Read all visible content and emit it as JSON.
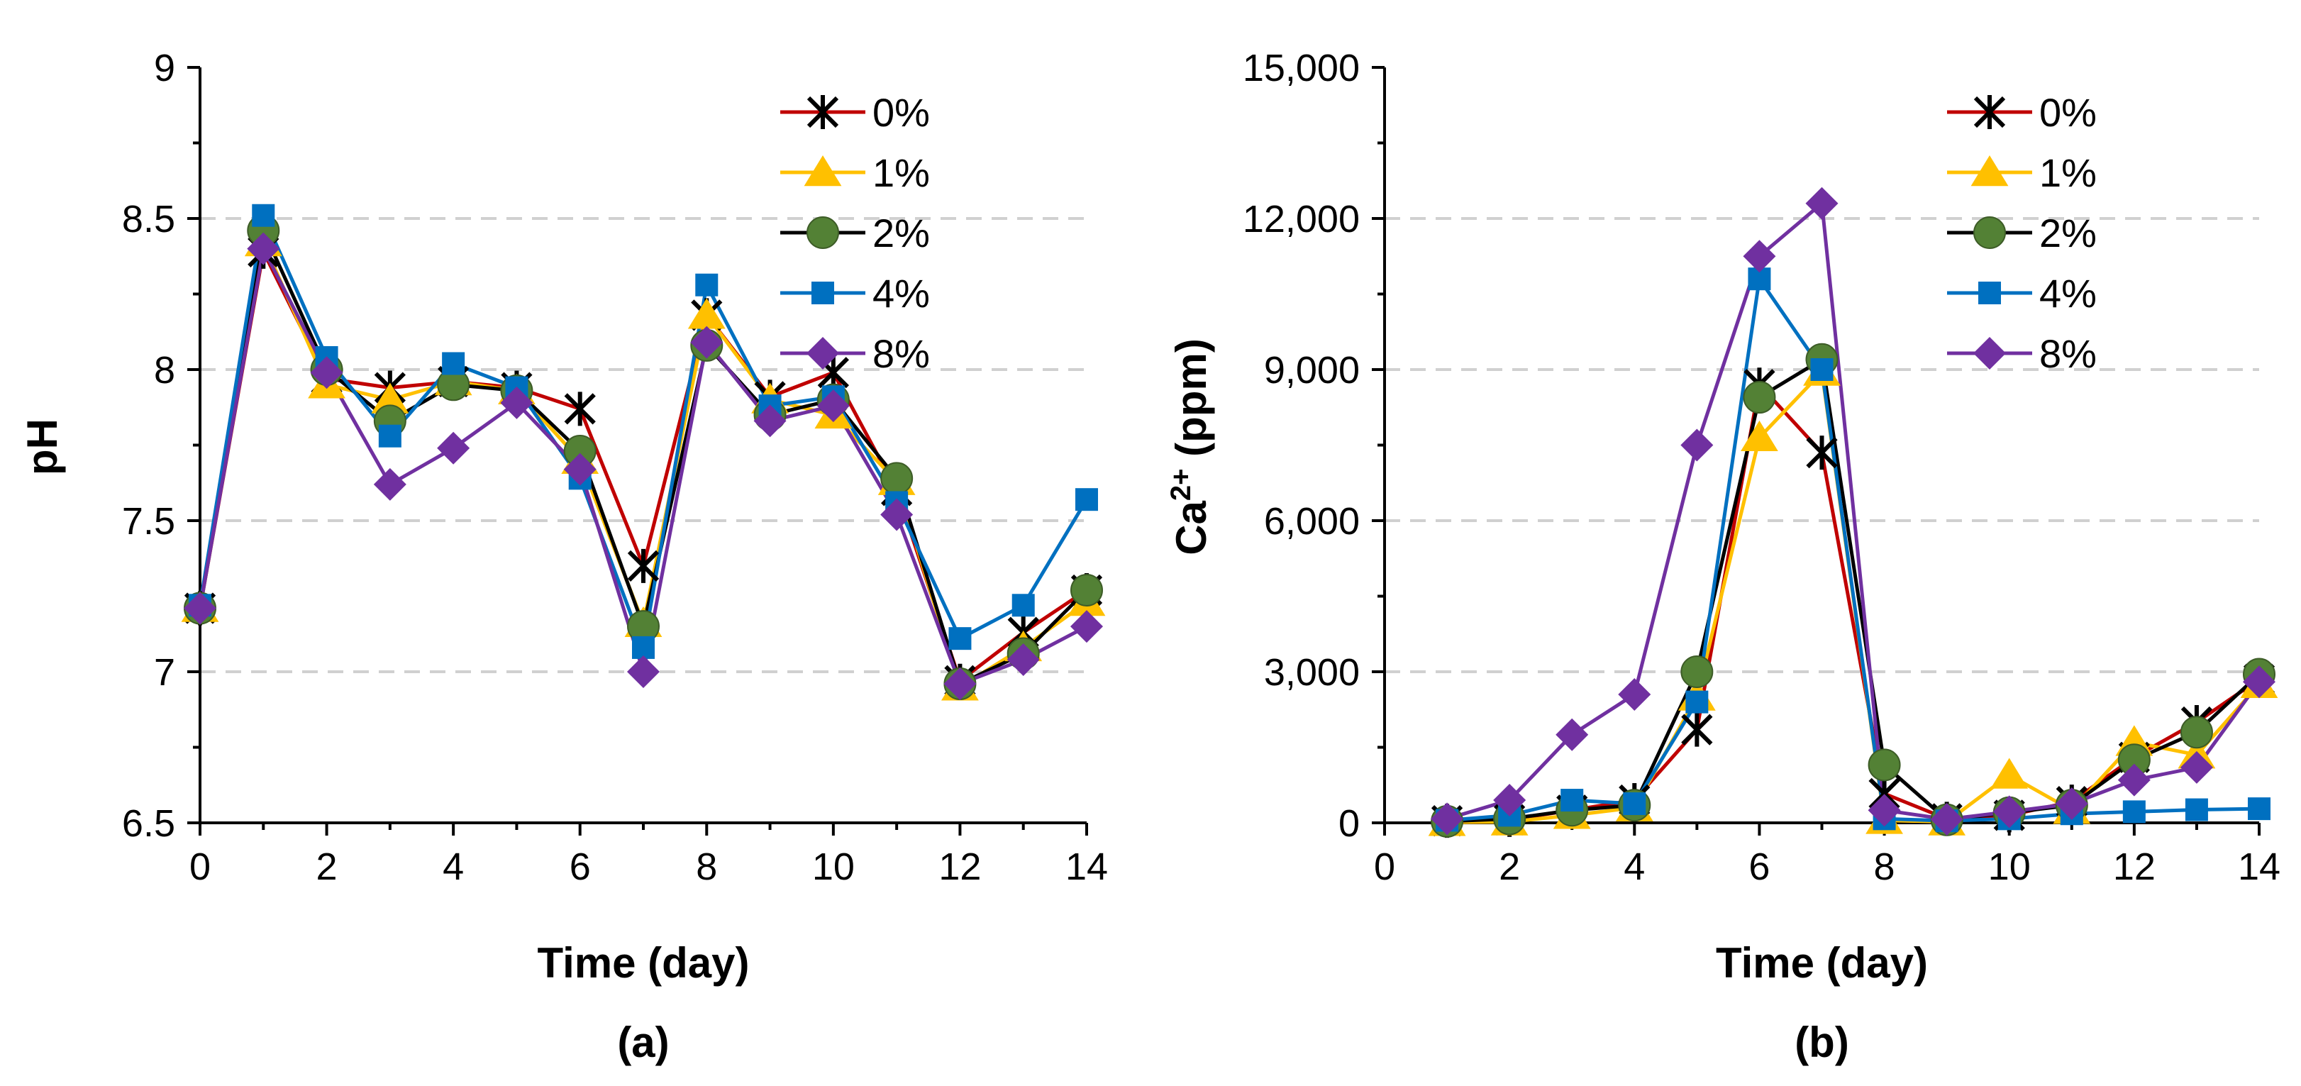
{
  "chart_data": [
    {
      "type": "line",
      "panel_label": "(a)",
      "xlabel": "Time (day)",
      "ylabel": "pH",
      "ylabel_sup": "",
      "ylabel_rest": "",
      "xlim": [
        0,
        14
      ],
      "ylim": [
        6.5,
        9
      ],
      "xticks": [
        0,
        2,
        4,
        6,
        8,
        10,
        12,
        14
      ],
      "yticks": [
        6.5,
        7,
        7.5,
        8,
        8.5,
        9
      ],
      "ytick_labels": [
        "6.5",
        "7",
        "7.5",
        "8",
        "8.5",
        "9"
      ],
      "grid_y": [
        7,
        7.5,
        8,
        8.5
      ],
      "legend_position": "top-right",
      "series": [
        {
          "name": "0%",
          "color": "#C00000",
          "marker": "asterisk",
          "x": [
            0,
            1,
            2,
            3,
            4,
            5,
            6,
            7,
            8,
            9,
            10,
            11,
            12,
            13,
            14
          ],
          "y": [
            7.21,
            8.39,
            7.97,
            7.94,
            7.96,
            7.94,
            7.87,
            7.35,
            8.18,
            7.91,
            7.99,
            7.6,
            6.97,
            7.13,
            7.27
          ]
        },
        {
          "name": "1%",
          "color": "#FFC000",
          "marker": "triangle",
          "x": [
            0,
            1,
            2,
            3,
            4,
            5,
            6,
            7,
            8,
            9,
            10,
            11,
            12,
            13,
            14
          ],
          "y": [
            7.21,
            8.42,
            7.95,
            7.9,
            7.96,
            7.93,
            7.7,
            7.16,
            8.18,
            7.9,
            7.85,
            7.63,
            6.95,
            7.08,
            7.23
          ]
        },
        {
          "name": "2%",
          "color": "#538135",
          "marker": "circle",
          "x": [
            0,
            1,
            2,
            3,
            4,
            5,
            6,
            7,
            8,
            9,
            10,
            11,
            12,
            13,
            14
          ],
          "y": [
            7.21,
            8.46,
            8.0,
            7.83,
            7.95,
            7.93,
            7.73,
            7.15,
            8.08,
            7.85,
            7.9,
            7.64,
            6.96,
            7.06,
            7.27
          ]
        },
        {
          "name": "4%",
          "color": "#0070C0",
          "marker": "square",
          "x": [
            0,
            1,
            2,
            3,
            4,
            5,
            6,
            7,
            8,
            9,
            10,
            11,
            12,
            13,
            14
          ],
          "y": [
            7.22,
            8.51,
            8.04,
            7.78,
            8.02,
            7.94,
            7.64,
            7.08,
            8.28,
            7.88,
            7.91,
            7.56,
            7.11,
            7.22,
            7.57
          ]
        },
        {
          "name": "8%",
          "color": "#7030A0",
          "marker": "diamond",
          "x": [
            0,
            1,
            2,
            3,
            4,
            5,
            6,
            7,
            8,
            9,
            10,
            11,
            12,
            13,
            14
          ],
          "y": [
            7.21,
            8.4,
            7.99,
            7.62,
            7.74,
            7.89,
            7.67,
            7.0,
            8.09,
            7.83,
            7.88,
            7.52,
            6.96,
            7.04,
            7.15
          ]
        }
      ]
    },
    {
      "type": "line",
      "panel_label": "(b)",
      "xlabel": "Time (day)",
      "ylabel": "Ca",
      "ylabel_sup": "2+",
      "ylabel_rest": " (ppm)",
      "xlim": [
        0,
        14
      ],
      "ylim": [
        0,
        15000
      ],
      "xticks": [
        0,
        2,
        4,
        6,
        8,
        10,
        12,
        14
      ],
      "yticks": [
        0,
        3000,
        6000,
        9000,
        12000,
        15000
      ],
      "ytick_labels": [
        "0",
        "3,000",
        "6,000",
        "9,000",
        "12,000",
        "15,000"
      ],
      "grid_y": [
        3000,
        6000,
        9000,
        12000
      ],
      "legend_position": "top-right",
      "series": [
        {
          "name": "0%",
          "color": "#C00000",
          "marker": "asterisk",
          "x": [
            1,
            2,
            3,
            4,
            5,
            6,
            7,
            8,
            9,
            10,
            11,
            12,
            13,
            14
          ],
          "y": [
            40,
            60,
            250,
            450,
            1850,
            8700,
            7350,
            580,
            80,
            150,
            420,
            1300,
            2000,
            2850
          ]
        },
        {
          "name": "1%",
          "color": "#FFC000",
          "marker": "triangle",
          "x": [
            1,
            2,
            3,
            4,
            5,
            6,
            7,
            8,
            9,
            10,
            11,
            12,
            13,
            14
          ],
          "y": [
            10,
            20,
            150,
            300,
            2500,
            7650,
            8950,
            50,
            20,
            950,
            250,
            1600,
            1350,
            2750
          ]
        },
        {
          "name": "2%",
          "color": "#538135",
          "marker": "circle",
          "x": [
            1,
            2,
            3,
            4,
            5,
            6,
            7,
            8,
            9,
            10,
            11,
            12,
            13,
            14
          ],
          "y": [
            30,
            80,
            250,
            350,
            3000,
            8450,
            9200,
            1150,
            60,
            200,
            350,
            1250,
            1800,
            2950
          ]
        },
        {
          "name": "4%",
          "color": "#0070C0",
          "marker": "square",
          "x": [
            1,
            2,
            3,
            4,
            5,
            6,
            7,
            8,
            9,
            10,
            11,
            12,
            13,
            14
          ],
          "y": [
            50,
            150,
            450,
            380,
            2400,
            10800,
            9000,
            80,
            40,
            80,
            180,
            220,
            260,
            280
          ]
        },
        {
          "name": "8%",
          "color": "#7030A0",
          "marker": "diamond",
          "x": [
            1,
            2,
            3,
            4,
            5,
            6,
            7,
            8,
            9,
            10,
            11,
            12,
            13,
            14
          ],
          "y": [
            80,
            450,
            1750,
            2550,
            7500,
            11250,
            12300,
            250,
            70,
            220,
            380,
            850,
            1100,
            2800
          ]
        }
      ]
    }
  ]
}
